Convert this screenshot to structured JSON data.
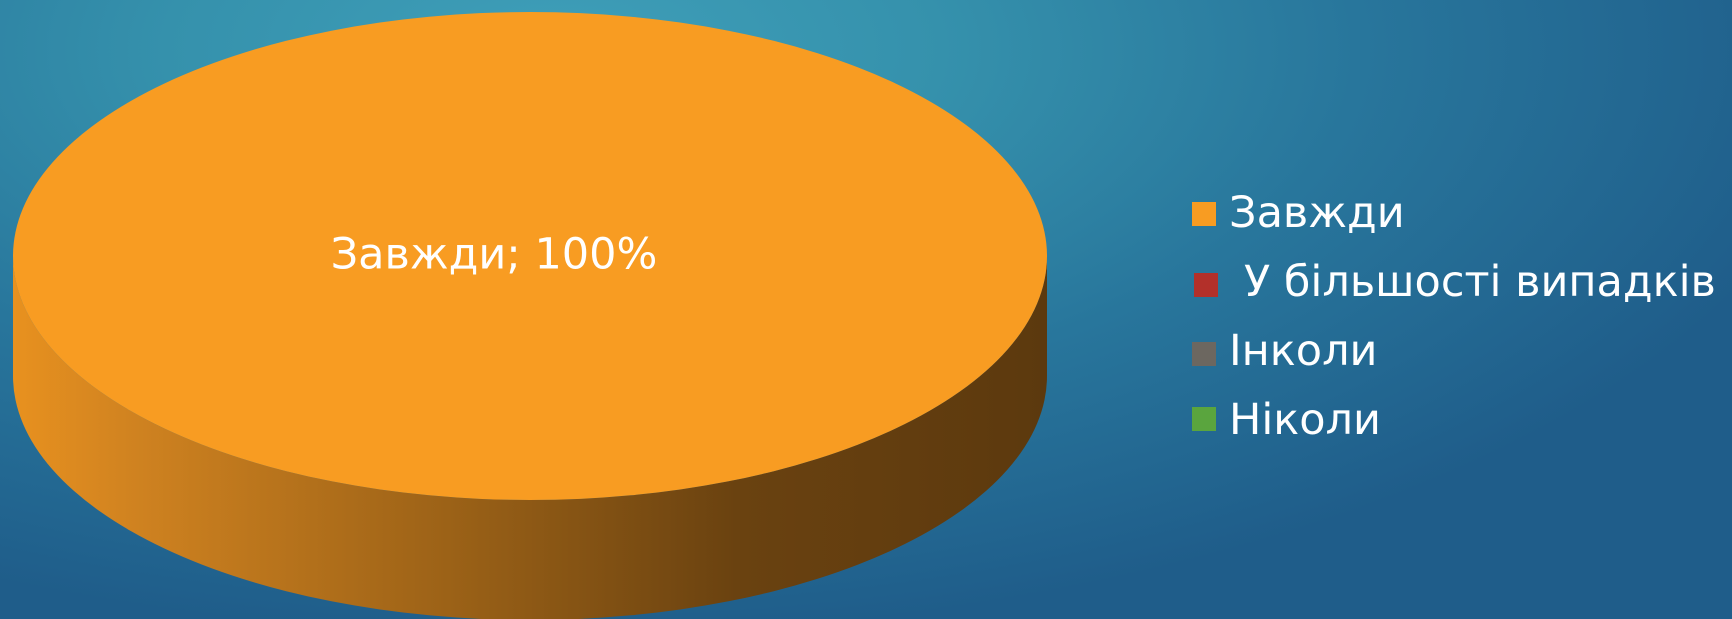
{
  "chart_data": {
    "type": "pie",
    "title": "",
    "categories": [
      "Завжди",
      "У більшості випадків",
      "Інколи",
      "Ніколи"
    ],
    "values": [
      100,
      0,
      0,
      0
    ],
    "unit": "%",
    "colors": [
      "#f89c22",
      "#b3302a",
      "#6c6760",
      "#5aa53e"
    ],
    "data_labels": [
      "Завжди; 100%"
    ],
    "legend_position": "right",
    "three_d": true
  }
}
